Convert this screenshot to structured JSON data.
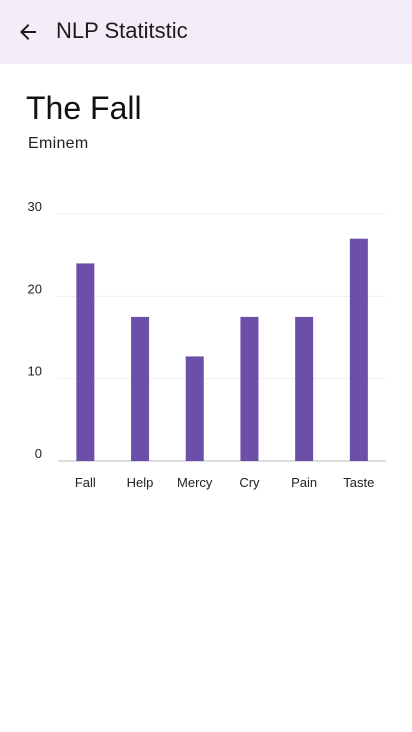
{
  "appbar": {
    "title": "NLP Statitstic",
    "back_icon": "arrow-back-icon"
  },
  "song": {
    "title": "The Fall",
    "artist": "Eminem"
  },
  "colors": {
    "appbar_bg": "#f3edf7",
    "bar": "#6b4fa8",
    "grid": "#eeeeee",
    "axis": "#bbbbbb"
  },
  "chart_data": {
    "type": "bar",
    "categories": [
      "Fall",
      "Help",
      "Mercy",
      "Cry",
      "Pain",
      "Taste"
    ],
    "values": [
      24,
      17.5,
      12.7,
      17.5,
      17.5,
      27
    ],
    "ylim": [
      0,
      30
    ],
    "yticks": [
      0,
      10,
      20,
      30
    ],
    "grid": true,
    "title": "",
    "xlabel": "",
    "ylabel": ""
  }
}
